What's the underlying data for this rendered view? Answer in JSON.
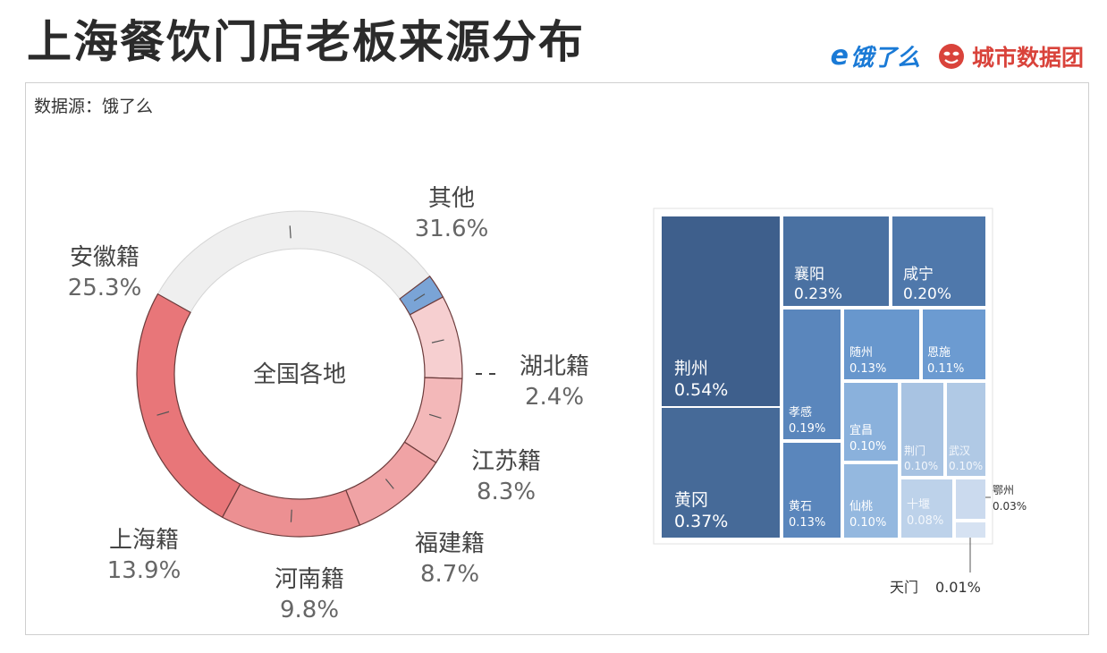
{
  "header": {
    "title": "上海餐饮门店老板来源分布",
    "brand_eleme": "饿了么",
    "brand_city": "城市数据团",
    "source": "数据源：饿了么"
  },
  "colors": {
    "pink_dark": "#e87679",
    "pink_mid": "#f0a3a5",
    "pink_light": "#f6cfd0",
    "grey": "#efefef",
    "blue": "#7aa4d6",
    "brand_blue": "#1a7ad6",
    "brand_red": "#d9433b"
  },
  "chart_data": [
    {
      "type": "pie",
      "center_label": "全国各地",
      "slices": [
        {
          "name": "其他",
          "value": 31.6,
          "label": "31.6%",
          "color": "#efefef"
        },
        {
          "name": "湖北籍",
          "value": 2.4,
          "label": "2.4%",
          "color": "#7aa4d6"
        },
        {
          "name": "江苏籍",
          "value": 8.3,
          "label": "8.3%",
          "color": "#f6cfd0"
        },
        {
          "name": "福建籍",
          "value": 8.7,
          "label": "8.7%",
          "color": "#f3b8b9"
        },
        {
          "name": "河南籍",
          "value": 9.8,
          "label": "9.8%",
          "color": "#f0a3a5"
        },
        {
          "name": "上海籍",
          "value": 13.9,
          "label": "13.9%",
          "color": "#ec9092"
        },
        {
          "name": "安徽籍",
          "value": 25.3,
          "label": "25.3%",
          "color": "#e87679"
        }
      ]
    },
    {
      "type": "treemap",
      "items": [
        {
          "name": "荆州",
          "label": "0.54%",
          "value": 0.54
        },
        {
          "name": "黄冈",
          "label": "0.37%",
          "value": 0.37
        },
        {
          "name": "襄阳",
          "label": "0.23%",
          "value": 0.23
        },
        {
          "name": "咸宁",
          "label": "0.20%",
          "value": 0.2
        },
        {
          "name": "孝感",
          "label": "0.19%",
          "value": 0.19
        },
        {
          "name": "黄石",
          "label": "0.13%",
          "value": 0.13
        },
        {
          "name": "随州",
          "label": "0.13%",
          "value": 0.13
        },
        {
          "name": "恩施",
          "label": "0.11%",
          "value": 0.11
        },
        {
          "name": "宜昌",
          "label": "0.10%",
          "value": 0.1
        },
        {
          "name": "仙桃",
          "label": "0.10%",
          "value": 0.1
        },
        {
          "name": "荆门",
          "label": "0.10%",
          "value": 0.1
        },
        {
          "name": "武汉",
          "label": "0.10%",
          "value": 0.1
        },
        {
          "name": "十堰",
          "label": "0.08%",
          "value": 0.08
        },
        {
          "name": "鄂州",
          "label": "0.03%",
          "value": 0.03
        },
        {
          "name": "天门",
          "label": "0.01%",
          "value": 0.01
        }
      ]
    }
  ]
}
